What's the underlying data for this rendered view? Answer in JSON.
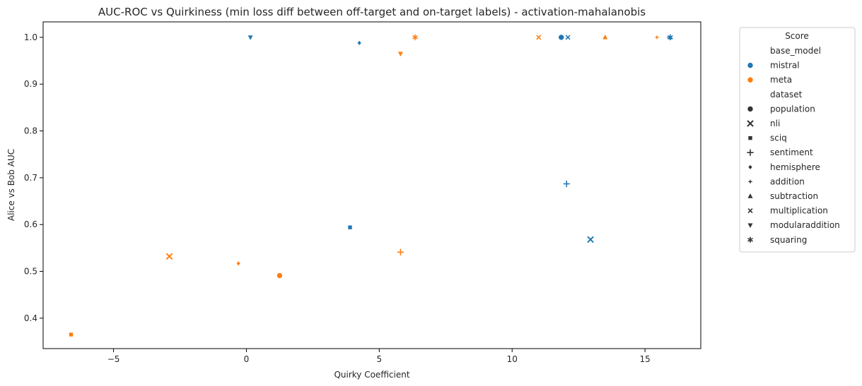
{
  "chart_data": {
    "type": "scatter",
    "title": "AUC-ROC vs Quirkiness (min loss diff between off-target and on-target labels) - activation-mahalanobis",
    "xlabel": "Quirky Coefficient",
    "ylabel": "Alice vs Bob AUC",
    "xlim": [
      -7.65,
      17.1
    ],
    "ylim": [
      0.335,
      1.033
    ],
    "xticks": [
      -5,
      0,
      5,
      10,
      15
    ],
    "yticks": [
      0.4,
      0.5,
      0.6,
      0.7,
      0.8,
      0.9,
      1.0
    ],
    "xtick_labels": [
      "−5",
      "0",
      "5",
      "10",
      "15"
    ],
    "ytick_labels": [
      "0.4",
      "0.5",
      "0.6",
      "0.7",
      "0.8",
      "0.9",
      "1.0"
    ],
    "grid": false,
    "legend": {
      "title": "Score",
      "placement": "outside-right",
      "hue_title": "base_model",
      "hue_entries": [
        {
          "name": "mistral",
          "color": "#1f77b4"
        },
        {
          "name": "meta",
          "color": "#ff7f0e"
        }
      ],
      "style_title": "dataset",
      "style_entries": [
        {
          "name": "population",
          "marker": "circle"
        },
        {
          "name": "nli",
          "marker": "x"
        },
        {
          "name": "sciq",
          "marker": "square"
        },
        {
          "name": "sentiment",
          "marker": "plus"
        },
        {
          "name": "hemisphere",
          "marker": "diamond"
        },
        {
          "name": "addition",
          "marker": "star4"
        },
        {
          "name": "subtraction",
          "marker": "triangle-up"
        },
        {
          "name": "multiplication",
          "marker": "x-small"
        },
        {
          "name": "modularaddition",
          "marker": "triangle-down"
        },
        {
          "name": "squaring",
          "marker": "asterisk"
        }
      ]
    },
    "points": [
      {
        "base_model": "mistral",
        "dataset": "population",
        "x": 11.85,
        "y": 1.0
      },
      {
        "base_model": "mistral",
        "dataset": "nli",
        "x": 12.95,
        "y": 0.568
      },
      {
        "base_model": "mistral",
        "dataset": "sciq",
        "x": 3.9,
        "y": 0.594
      },
      {
        "base_model": "mistral",
        "dataset": "sentiment",
        "x": 12.05,
        "y": 0.687
      },
      {
        "base_model": "mistral",
        "dataset": "hemisphere",
        "x": 4.25,
        "y": 0.988
      },
      {
        "base_model": "mistral",
        "dataset": "addition",
        "x": 15.9,
        "y": 1.0
      },
      {
        "base_model": "mistral",
        "dataset": "subtraction",
        "x": 15.95,
        "y": 1.0
      },
      {
        "base_model": "mistral",
        "dataset": "multiplication",
        "x": 12.1,
        "y": 1.0
      },
      {
        "base_model": "mistral",
        "dataset": "modularaddition",
        "x": 0.15,
        "y": 1.0
      },
      {
        "base_model": "mistral",
        "dataset": "squaring",
        "x": 15.95,
        "y": 1.0
      },
      {
        "base_model": "meta",
        "dataset": "population",
        "x": 1.25,
        "y": 0.491
      },
      {
        "base_model": "meta",
        "dataset": "nli",
        "x": -2.9,
        "y": 0.532
      },
      {
        "base_model": "meta",
        "dataset": "sciq",
        "x": -6.6,
        "y": 0.365
      },
      {
        "base_model": "meta",
        "dataset": "sentiment",
        "x": 5.8,
        "y": 0.541
      },
      {
        "base_model": "meta",
        "dataset": "hemisphere",
        "x": -0.3,
        "y": 0.517
      },
      {
        "base_model": "meta",
        "dataset": "addition",
        "x": 15.45,
        "y": 1.0
      },
      {
        "base_model": "meta",
        "dataset": "subtraction",
        "x": 13.5,
        "y": 1.0
      },
      {
        "base_model": "meta",
        "dataset": "multiplication",
        "x": 11.0,
        "y": 1.0
      },
      {
        "base_model": "meta",
        "dataset": "modularaddition",
        "x": 5.8,
        "y": 0.965
      },
      {
        "base_model": "meta",
        "dataset": "squaring",
        "x": 6.35,
        "y": 1.0
      }
    ]
  }
}
